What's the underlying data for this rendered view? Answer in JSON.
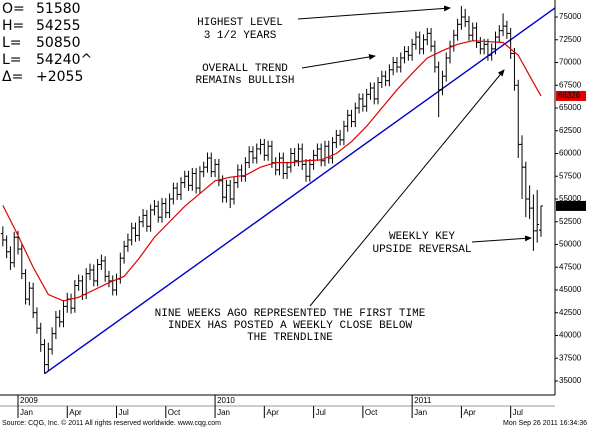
{
  "chart_data": {
    "type": "ohlc",
    "header": [
      [
        "O=",
        "51580"
      ],
      [
        "H=",
        "54255"
      ],
      [
        "L=",
        "50850"
      ],
      [
        "L=",
        "54240^"
      ],
      [
        "Δ=",
        "+2055"
      ]
    ],
    "annotations": [
      [
        "HIGHEST LEVEL",
        "3 1/2 YEARS"
      ],
      [
        "OVERALL TREND",
        "REMAINs BULLISH"
      ],
      [
        "WEEKLY KEY",
        "UPSIDE REVERSAL"
      ],
      [
        "NINE WEEKS AGO REPRESENTED THE FIRST TIME",
        "INDEX HAS POSTED A WEEKLY CLOSE BELOW",
        "THE TRENDLINE"
      ]
    ],
    "source": "Source: CQG, Inc. © 2011 All rights reserved worldwide. www.cqg.com",
    "timestamp": "Mon Sep 26 2011 16:34:36",
    "color": "#000000",
    "x": [
      -4,
      -3,
      -2,
      -1,
      0,
      1,
      2,
      3,
      4,
      5,
      6,
      7,
      8,
      9,
      10,
      11,
      12,
      13,
      14,
      15,
      16,
      17,
      18,
      19,
      20,
      21,
      22,
      23,
      24,
      25,
      26,
      27,
      28,
      29,
      30,
      31,
      32,
      33,
      34,
      35,
      36,
      37,
      38,
      39,
      40,
      41,
      42,
      43,
      44,
      45,
      46,
      47,
      48,
      49,
      50,
      51,
      52,
      53,
      54,
      55,
      56,
      57,
      58,
      59,
      60,
      61,
      62,
      63,
      64,
      65,
      66,
      67,
      68,
      69,
      70,
      71,
      72,
      73,
      74,
      75,
      76,
      77,
      78,
      79,
      80,
      81,
      82,
      83,
      84,
      85,
      86,
      87,
      88,
      89,
      90,
      91,
      92,
      93,
      94,
      95,
      96,
      97,
      98,
      99,
      100,
      101,
      102,
      103,
      104,
      105,
      106,
      107,
      108,
      109,
      110,
      111,
      112,
      113,
      114,
      115,
      116,
      117,
      118,
      119,
      120,
      121,
      122,
      123,
      124,
      125,
      126,
      127,
      128,
      129,
      130,
      131,
      132,
      133,
      134,
      135,
      136,
      137,
      138
    ],
    "open": [
      51200,
      50500,
      49200,
      48000,
      50800,
      49500,
      46800,
      44000,
      45200,
      42500,
      40800,
      39000,
      36800,
      38500,
      40200,
      42000,
      41500,
      43200,
      44000,
      43000,
      45500,
      46000,
      44500,
      46800,
      47200,
      46000,
      47800,
      48200,
      46500,
      46000,
      45000,
      46200,
      48500,
      49800,
      50500,
      51800,
      51000,
      52500,
      53200,
      52000,
      53800,
      54200,
      53000,
      54500,
      53500,
      55000,
      56200,
      55500,
      56800,
      57500,
      56500,
      57800,
      56200,
      58000,
      58500,
      59500,
      58000,
      58800,
      57000,
      55200,
      56500,
      55000,
      56800,
      58200,
      57500,
      59000,
      60200,
      59500,
      60500,
      61000,
      59800,
      60800,
      59000,
      58200,
      59500,
      57800,
      58500,
      60000,
      59200,
      60500,
      58800,
      57500,
      58800,
      59800,
      60500,
      59200,
      60800,
      59500,
      61200,
      62000,
      61500,
      63000,
      64200,
      63500,
      65000,
      66000,
      65200,
      66500,
      67200,
      66000,
      67800,
      68500,
      68000,
      69200,
      70000,
      69500,
      70500,
      71200,
      70800,
      72000,
      72800,
      71500,
      72500,
      73200,
      71800,
      69500,
      67000,
      68500,
      70500,
      71800,
      73000,
      74200,
      75000,
      74500,
      73000,
      73800,
      72200,
      71500,
      72000,
      70800,
      71500,
      72800,
      73500,
      74000,
      73200,
      71000,
      67500,
      61000,
      58500,
      55000,
      54000,
      51500,
      51580
    ],
    "high": [
      52000,
      51000,
      49800,
      51400,
      51500,
      50000,
      47300,
      45900,
      45800,
      43100,
      41400,
      39600,
      39200,
      40900,
      42700,
      42800,
      43900,
      44700,
      44600,
      46100,
      46700,
      46600,
      47400,
      47900,
      47800,
      48400,
      48900,
      48700,
      47100,
      46600,
      46800,
      49100,
      50400,
      51200,
      52400,
      52400,
      53100,
      53900,
      53800,
      54400,
      54900,
      54800,
      55100,
      55100,
      55600,
      56800,
      56800,
      57400,
      58100,
      58100,
      58400,
      58400,
      58600,
      59100,
      60100,
      60100,
      59400,
      59400,
      57600,
      57100,
      57100,
      57400,
      58800,
      58800,
      59600,
      60800,
      60800,
      61100,
      61600,
      61600,
      61400,
      61400,
      59600,
      60100,
      60100,
      59100,
      60600,
      60600,
      61100,
      61100,
      59400,
      59400,
      60400,
      61100,
      61100,
      61400,
      61400,
      61800,
      62600,
      62600,
      63600,
      64800,
      64800,
      65600,
      66600,
      66600,
      67100,
      67800,
      67800,
      68400,
      69100,
      69100,
      69800,
      70600,
      70600,
      71100,
      71800,
      71800,
      72600,
      73400,
      73400,
      73100,
      73800,
      73800,
      72400,
      70100,
      69100,
      71100,
      72400,
      73600,
      74800,
      76200,
      75900,
      75100,
      74400,
      74400,
      72800,
      72600,
      72600,
      72100,
      73400,
      74100,
      75400,
      74600,
      73800,
      71600,
      68100,
      62000,
      59100,
      56500,
      55500,
      56000,
      54255
    ],
    "low": [
      49800,
      48500,
      47200,
      47500,
      48900,
      46200,
      43400,
      43300,
      41900,
      40200,
      38200,
      35800,
      36100,
      37900,
      39600,
      40900,
      40900,
      42500,
      42400,
      42500,
      44900,
      43900,
      44000,
      46100,
      45400,
      45400,
      47200,
      45900,
      45300,
      44400,
      44400,
      45700,
      47900,
      49200,
      49900,
      50300,
      50400,
      51900,
      51400,
      51400,
      53200,
      52400,
      52400,
      52900,
      52900,
      54400,
      54900,
      54900,
      56200,
      55900,
      55900,
      55600,
      55600,
      57400,
      57900,
      57400,
      57400,
      56400,
      54600,
      54600,
      54000,
      54400,
      56200,
      56900,
      56900,
      58400,
      58900,
      58900,
      59900,
      59200,
      59200,
      58400,
      57600,
      57600,
      57200,
      57200,
      57900,
      58600,
      58600,
      58200,
      56900,
      56900,
      58200,
      59200,
      58600,
      58600,
      58900,
      58900,
      60600,
      60900,
      60900,
      62400,
      62900,
      62900,
      64400,
      64600,
      64600,
      65900,
      65400,
      65400,
      67200,
      67400,
      67400,
      68600,
      68900,
      68900,
      69900,
      70200,
      70200,
      71400,
      70900,
      70900,
      71900,
      71200,
      68900,
      64000,
      66400,
      67900,
      69900,
      71200,
      72400,
      73600,
      73900,
      72400,
      72400,
      71600,
      70900,
      70900,
      70200,
      70200,
      70900,
      72200,
      72900,
      72600,
      70400,
      66900,
      59500,
      55000,
      53000,
      52800,
      49300,
      50200,
      50850
    ],
    "close": [
      50500,
      49200,
      48000,
      50800,
      49500,
      46800,
      44000,
      45200,
      42500,
      40800,
      39000,
      36800,
      38500,
      40200,
      42000,
      41500,
      43200,
      44000,
      43000,
      45500,
      46000,
      44500,
      46800,
      47200,
      46000,
      47800,
      48200,
      46500,
      46000,
      45000,
      46200,
      48500,
      49800,
      50500,
      51800,
      51000,
      52500,
      53200,
      52000,
      53800,
      54200,
      53000,
      54500,
      53500,
      55000,
      56200,
      55500,
      56800,
      57500,
      56500,
      57800,
      56200,
      58000,
      58500,
      59500,
      58000,
      58800,
      57000,
      55200,
      56500,
      55000,
      56800,
      58200,
      57500,
      59000,
      60200,
      59500,
      60500,
      61000,
      59800,
      60800,
      59000,
      58200,
      59500,
      57800,
      58500,
      60000,
      59200,
      60500,
      58800,
      57500,
      58800,
      59800,
      60500,
      59200,
      60800,
      59500,
      61200,
      62000,
      61500,
      63000,
      64200,
      63500,
      65000,
      66000,
      65200,
      66500,
      67200,
      66000,
      67800,
      68500,
      68000,
      69200,
      70000,
      69500,
      70500,
      71200,
      70800,
      72000,
      72800,
      71500,
      72500,
      73200,
      71800,
      69500,
      67000,
      68500,
      70500,
      71800,
      73000,
      74200,
      75000,
      74500,
      73000,
      73800,
      72200,
      71500,
      72000,
      70800,
      71500,
      72800,
      73500,
      74000,
      73200,
      71000,
      67500,
      61000,
      58500,
      55000,
      54000,
      51500,
      52200,
      54240
    ],
    "ma": {
      "color": "#e00000",
      "x": [
        -4,
        0,
        4,
        8,
        12,
        16,
        20,
        24,
        28,
        32,
        36,
        40,
        44,
        48,
        52,
        56,
        60,
        64,
        68,
        72,
        76,
        80,
        84,
        88,
        92,
        96,
        100,
        104,
        108,
        112,
        116,
        120,
        124,
        128,
        132,
        136,
        138
      ],
      "values": [
        54300,
        51000,
        47500,
        44500,
        43800,
        44200,
        45000,
        45800,
        46500,
        48500,
        50800,
        52500,
        54200,
        55600,
        57000,
        57400,
        57600,
        58500,
        59000,
        59000,
        59200,
        59300,
        60000,
        61300,
        63000,
        65000,
        67000,
        68800,
        70500,
        71300,
        72000,
        72400,
        72300,
        72200,
        70800,
        67800,
        66326
      ]
    },
    "trendline": {
      "color": "#0000cc",
      "x": [
        7,
        141.7
      ],
      "values": [
        35800,
        76000
      ]
    },
    "xlim": [
      -4.75,
      141.7
    ],
    "ylim": [
      33460,
      76870
    ],
    "yticks": [
      35000,
      37500,
      40000,
      42500,
      45000,
      47500,
      50000,
      52500,
      55000,
      57500,
      60000,
      62500,
      65000,
      67500,
      70000,
      72500,
      75000
    ],
    "xticks": [
      {
        "value": 0,
        "label": "Jan"
      },
      {
        "value": 13,
        "label": "Apr"
      },
      {
        "value": 26,
        "label": "Jul"
      },
      {
        "value": 39,
        "label": "Oct"
      },
      {
        "value": 52,
        "label": "Jan"
      },
      {
        "value": 65,
        "label": "Apr"
      },
      {
        "value": 78,
        "label": "Jul"
      },
      {
        "value": 91,
        "label": "Oct"
      },
      {
        "value": 104,
        "label": "Jan"
      },
      {
        "value": 117,
        "label": "Apr"
      },
      {
        "value": 130,
        "label": "Jul"
      }
    ],
    "years": [
      {
        "value": 0,
        "label": "2009"
      },
      {
        "value": 52,
        "label": "2010"
      },
      {
        "value": 104,
        "label": "2011"
      }
    ]
  }
}
